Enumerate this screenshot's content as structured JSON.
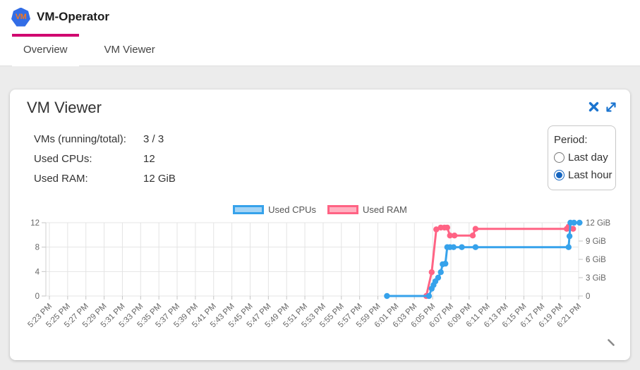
{
  "header": {
    "title": "VM-Operator",
    "logo_text": "VM"
  },
  "tabs": [
    {
      "label": "Overview",
      "active": true
    },
    {
      "label": "VM Viewer",
      "active": false
    }
  ],
  "panel": {
    "title": "VM Viewer",
    "stats": [
      {
        "label": "VMs (running/total):",
        "value": "3 / 3"
      },
      {
        "label": "Used CPUs:",
        "value": "12"
      },
      {
        "label": "Used RAM:",
        "value": "12 GiB"
      }
    ],
    "period": {
      "label": "Period:",
      "options": [
        {
          "label": "Last day",
          "selected": false
        },
        {
          "label": "Last hour",
          "selected": true
        }
      ]
    }
  },
  "icons": {
    "close": "✕",
    "expand": "⤢",
    "resize": "◢"
  },
  "colors": {
    "accent": "#d0006f",
    "icon_blue": "#1b74cf",
    "cpu": "#36a2eb",
    "cpu_fill": "#a5d4f5",
    "ram": "#ff6384",
    "ram_fill": "#ffb1c1",
    "grid": "#e4e4e4",
    "tick": "#c4c4c4",
    "axis_border": "#cfcfcf",
    "axis_text": "#666666"
  },
  "chart_data": {
    "type": "line",
    "title": "",
    "legend_position": "top-center",
    "grid": true,
    "x_tick_labels": [
      "5:23 PM",
      "5:25 PM",
      "5:27 PM",
      "5:29 PM",
      "5:31 PM",
      "5:33 PM",
      "5:35 PM",
      "5:37 PM",
      "5:39 PM",
      "5:41 PM",
      "5:43 PM",
      "5:45 PM",
      "5:47 PM",
      "5:49 PM",
      "5:51 PM",
      "5:53 PM",
      "5:55 PM",
      "5:57 PM",
      "5:59 PM",
      "6:01 PM",
      "6:03 PM",
      "6:05 PM",
      "6:07 PM",
      "6:09 PM",
      "6:11 PM",
      "6:13 PM",
      "6:15 PM",
      "6:17 PM",
      "6:19 PM",
      "6:21 PM"
    ],
    "x_axis_unit": "minutes since 5:23 PM",
    "x_range": [
      0,
      58
    ],
    "left_axis": {
      "title": "Used CPUs",
      "ticks": [
        0,
        4,
        8,
        12
      ],
      "range": [
        0,
        12
      ]
    },
    "right_axis": {
      "title": "Used RAM",
      "range": [
        0,
        12
      ],
      "ticks": [
        {
          "value": 0,
          "label": "0"
        },
        {
          "value": 3,
          "label": "3 GiB"
        },
        {
          "value": 6,
          "label": "6 GiB"
        },
        {
          "value": 9,
          "label": "9 GiB"
        },
        {
          "value": 12,
          "label": "12 GiB"
        }
      ]
    },
    "legend": [
      {
        "name": "Used CPUs"
      },
      {
        "name": "Used RAM"
      }
    ],
    "series": [
      {
        "name": "Used RAM",
        "axis": "right",
        "color_key": "ram",
        "points": [
          [
            41.3,
            0
          ],
          [
            41.9,
            3.9
          ],
          [
            42.4,
            10.9
          ],
          [
            42.9,
            11.2
          ],
          [
            43.3,
            11.2
          ],
          [
            43.6,
            11.2
          ],
          [
            43.9,
            9.9
          ],
          [
            44.4,
            9.9
          ],
          [
            46.4,
            9.9
          ],
          [
            46.7,
            11.0
          ],
          [
            56.7,
            11.0
          ],
          [
            56.9,
            11.35
          ],
          [
            57.4,
            11.0
          ]
        ]
      },
      {
        "name": "Used CPUs",
        "axis": "left",
        "color_key": "cpu",
        "points": [
          [
            37.0,
            0
          ],
          [
            41.6,
            0
          ],
          [
            41.9,
            1.2
          ],
          [
            42.1,
            1.8
          ],
          [
            42.3,
            2.4
          ],
          [
            42.6,
            3.0
          ],
          [
            42.9,
            3.9
          ],
          [
            43.1,
            5.2
          ],
          [
            43.4,
            5.3
          ],
          [
            43.6,
            8
          ],
          [
            43.9,
            8
          ],
          [
            44.3,
            8
          ],
          [
            45.2,
            8
          ],
          [
            46.7,
            8
          ],
          [
            56.9,
            8
          ],
          [
            57.0,
            9.8
          ],
          [
            57.1,
            12
          ],
          [
            57.5,
            12
          ],
          [
            58.1,
            12
          ]
        ]
      }
    ]
  }
}
